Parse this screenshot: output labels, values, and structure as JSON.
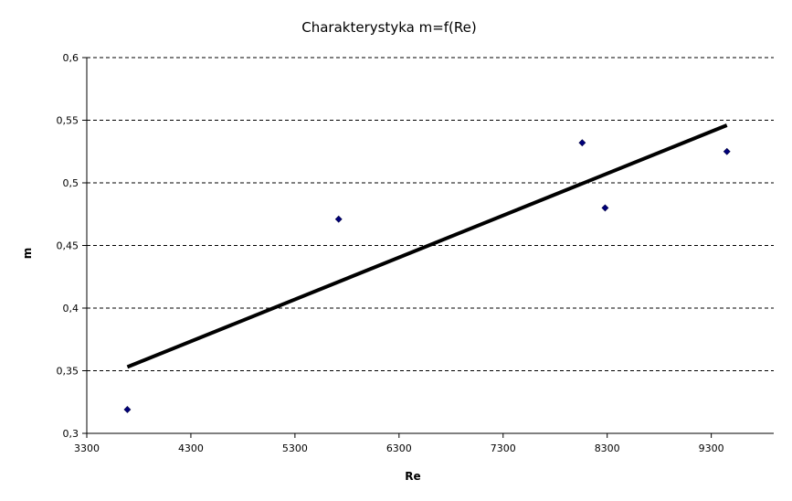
{
  "chart_data": {
    "type": "scatter",
    "title": "Charakterystyka m=f(Re)",
    "xlabel": "Re",
    "ylabel": "m",
    "xlim": [
      3300,
      9900
    ],
    "ylim": [
      0.3,
      0.6
    ],
    "x_ticks": [
      3300,
      4300,
      5300,
      6300,
      7300,
      8300,
      9300
    ],
    "x_tick_labels": [
      "3300",
      "4300",
      "5300",
      "6300",
      "7300",
      "8300",
      "9300"
    ],
    "y_ticks": [
      0.3,
      0.35,
      0.4,
      0.45,
      0.5,
      0.55,
      0.6
    ],
    "y_tick_labels": [
      "0,3",
      "0,35",
      "0,4",
      "0,45",
      "0,5",
      "0,55",
      "0,6"
    ],
    "grid": "horizontal-dashed",
    "legend": "none",
    "series": [
      {
        "points": [
          {
            "x": 3690,
            "y": 0.319
          },
          {
            "x": 5720,
            "y": 0.471
          },
          {
            "x": 8060,
            "y": 0.532
          },
          {
            "x": 8280,
            "y": 0.48
          },
          {
            "x": 9450,
            "y": 0.525
          }
        ],
        "color": "#00007a",
        "marker": "diamond"
      }
    ],
    "trendline": {
      "type": "linear",
      "start": {
        "x": 3690,
        "y": 0.353
      },
      "end": {
        "x": 9450,
        "y": 0.546
      },
      "color": "#000000"
    }
  }
}
